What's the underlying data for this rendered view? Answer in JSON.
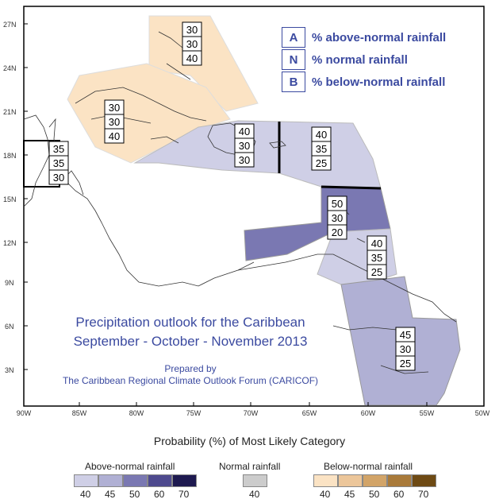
{
  "map": {
    "lat_ticks": [
      "27N",
      "24N",
      "21N",
      "18N",
      "15N",
      "12N",
      "9N",
      "6N",
      "3N"
    ],
    "lon_ticks": [
      "90W",
      "85W",
      "80W",
      "75W",
      "70W",
      "65W",
      "60W",
      "55W",
      "50W"
    ],
    "colors": {
      "above_40": "#cfcfe6",
      "above_45": "#b0b0d4",
      "above_50": "#7a78b2",
      "above_60": "#4e4a8e",
      "above_70": "#1e1a50",
      "normal_40": "#cccccc",
      "below_40": "#fbe3c4",
      "below_45": "#ecc69a",
      "below_50": "#d2a468",
      "below_60": "#a97a3a",
      "below_70": "#6e4a14"
    },
    "boxes": [
      {
        "name": "bahamas",
        "a": "30",
        "n": "30",
        "b": "40"
      },
      {
        "name": "cuba",
        "a": "30",
        "n": "30",
        "b": "40"
      },
      {
        "name": "belize",
        "a": "35",
        "n": "35",
        "b": "30"
      },
      {
        "name": "hispaniola",
        "a": "40",
        "n": "30",
        "b": "30"
      },
      {
        "name": "leeward",
        "a": "40",
        "n": "35",
        "b": "25"
      },
      {
        "name": "windward",
        "a": "50",
        "n": "30",
        "b": "20"
      },
      {
        "name": "trinidad",
        "a": "40",
        "n": "35",
        "b": "25"
      },
      {
        "name": "guianas",
        "a": "45",
        "n": "30",
        "b": "25"
      }
    ]
  },
  "key": [
    {
      "letter": "A",
      "text": "% above-normal rainfall"
    },
    {
      "letter": "N",
      "text": "% normal rainfall"
    },
    {
      "letter": "B",
      "text": "% below-normal rainfall"
    }
  ],
  "title": {
    "line1": "Precipitation outlook for the Caribbean",
    "line2": "September - October - November 2013",
    "prepared": "Prepared by",
    "org": "The Caribbean Regional Climate Outlook Forum (CARICOF)"
  },
  "legend": {
    "title": "Probability (%) of Most Likely Category",
    "above_title": "Above-normal rainfall",
    "normal_title": "Normal rainfall",
    "below_title": "Below-normal rainfall",
    "above_values": [
      "40",
      "45",
      "50",
      "60",
      "70"
    ],
    "normal_values": [
      "40"
    ],
    "below_values": [
      "40",
      "45",
      "50",
      "60",
      "70"
    ]
  }
}
